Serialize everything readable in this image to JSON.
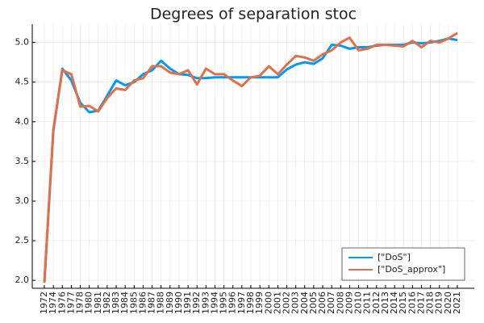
{
  "chart_data": {
    "type": "line",
    "title": "Degrees of separation stoc",
    "categories": [
      "1972",
      "1974",
      "1976",
      "1977",
      "1978",
      "1980",
      "1981",
      "1982",
      "1983",
      "1984",
      "1985",
      "1986",
      "1987",
      "1988",
      "1989",
      "1990",
      "1991",
      "1992",
      "1993",
      "1994",
      "1995",
      "1996",
      "1997",
      "1998",
      "1999",
      "2000",
      "2001",
      "2002",
      "2003",
      "2004",
      "2005",
      "2006",
      "2007",
      "2008",
      "2009",
      "2010",
      "2011",
      "2012",
      "2013",
      "2014",
      "2015",
      "2016",
      "2017",
      "2018",
      "2019",
      "2020",
      "2021"
    ],
    "series": [
      {
        "name": "[\"DoS\"]",
        "color": "#009af9",
        "values": [
          1.97,
          3.88,
          4.67,
          4.52,
          4.24,
          4.12,
          4.14,
          4.33,
          4.52,
          4.46,
          4.5,
          4.6,
          4.65,
          4.77,
          4.67,
          4.6,
          4.59,
          4.55,
          4.55,
          4.56,
          4.56,
          4.56,
          4.56,
          4.56,
          4.56,
          4.56,
          4.56,
          4.66,
          4.72,
          4.75,
          4.73,
          4.8,
          4.97,
          4.96,
          4.92,
          4.94,
          4.94,
          4.96,
          4.97,
          4.97,
          4.97,
          5.0,
          4.99,
          5.0,
          5.02,
          5.05,
          5.03
        ]
      },
      {
        "name": "[\"DoS_approx\"]",
        "color": "#e26f46",
        "values": [
          1.97,
          3.9,
          4.65,
          4.6,
          4.19,
          4.2,
          4.13,
          4.3,
          4.42,
          4.4,
          4.52,
          4.55,
          4.7,
          4.7,
          4.62,
          4.6,
          4.65,
          4.47,
          4.67,
          4.6,
          4.6,
          4.52,
          4.45,
          4.56,
          4.58,
          4.7,
          4.6,
          4.72,
          4.83,
          4.81,
          4.77,
          4.85,
          4.9,
          5.0,
          5.06,
          4.9,
          4.92,
          4.97,
          4.97,
          4.96,
          4.95,
          5.02,
          4.94,
          5.02,
          5.0,
          5.05,
          5.12
        ]
      }
    ],
    "ylim": [
      1.9,
      5.23
    ],
    "yticks": [
      {
        "value": 2,
        "label": "2.0"
      },
      {
        "value": 2.5,
        "label": "2.5"
      },
      {
        "value": 3,
        "label": "3.0"
      },
      {
        "value": 3.5,
        "label": "3.5"
      },
      {
        "value": 4,
        "label": "4.0"
      },
      {
        "value": 4.5,
        "label": "4.5"
      },
      {
        "value": 5,
        "label": "5.0"
      }
    ],
    "grid": true,
    "legend": "bottom-right"
  }
}
